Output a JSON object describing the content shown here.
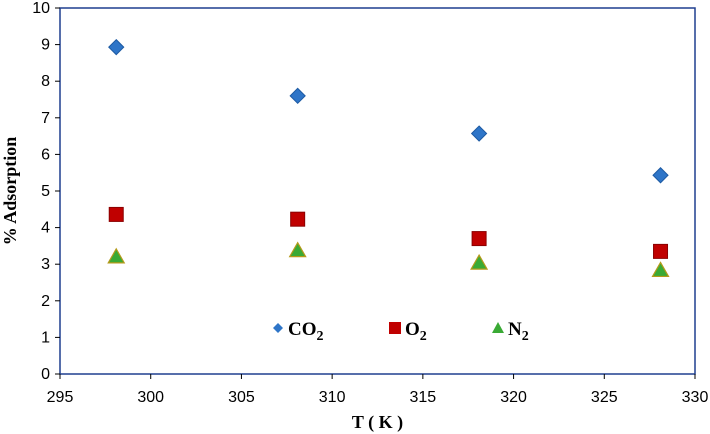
{
  "chart_data": {
    "type": "scatter",
    "title": "",
    "xlabel": "T ( K )",
    "ylabel": "% Adsorption",
    "xlim": [
      295,
      330
    ],
    "ylim": [
      0,
      10
    ],
    "x_ticks": [
      "295",
      "300",
      "305",
      "310",
      "315",
      "320",
      "325",
      "330"
    ],
    "y_ticks": [
      "0",
      "1",
      "2",
      "3",
      "4",
      "5",
      "6",
      "7",
      "8",
      "9",
      "10"
    ],
    "grid": false,
    "legend_position": "bottom-center",
    "series": [
      {
        "name": "CO2",
        "label_main": "CO",
        "label_sub": "2",
        "marker": "diamond",
        "color": "#2e75c8",
        "x": [
          298.1,
          308.1,
          318.1,
          328.1
        ],
        "y": [
          8.93,
          7.6,
          6.57,
          5.43
        ]
      },
      {
        "name": "O2",
        "label_main": "O",
        "label_sub": "2",
        "marker": "square",
        "color": "#c00000",
        "x": [
          298.1,
          308.1,
          318.1,
          328.1
        ],
        "y": [
          4.36,
          4.23,
          3.7,
          3.35
        ]
      },
      {
        "name": "N2",
        "label_main": "N",
        "label_sub": "2",
        "marker": "triangle",
        "color": "#3aaa35",
        "x": [
          298.1,
          308.1,
          318.1,
          328.1
        ],
        "y": [
          3.2,
          3.37,
          3.03,
          2.83
        ]
      }
    ]
  }
}
